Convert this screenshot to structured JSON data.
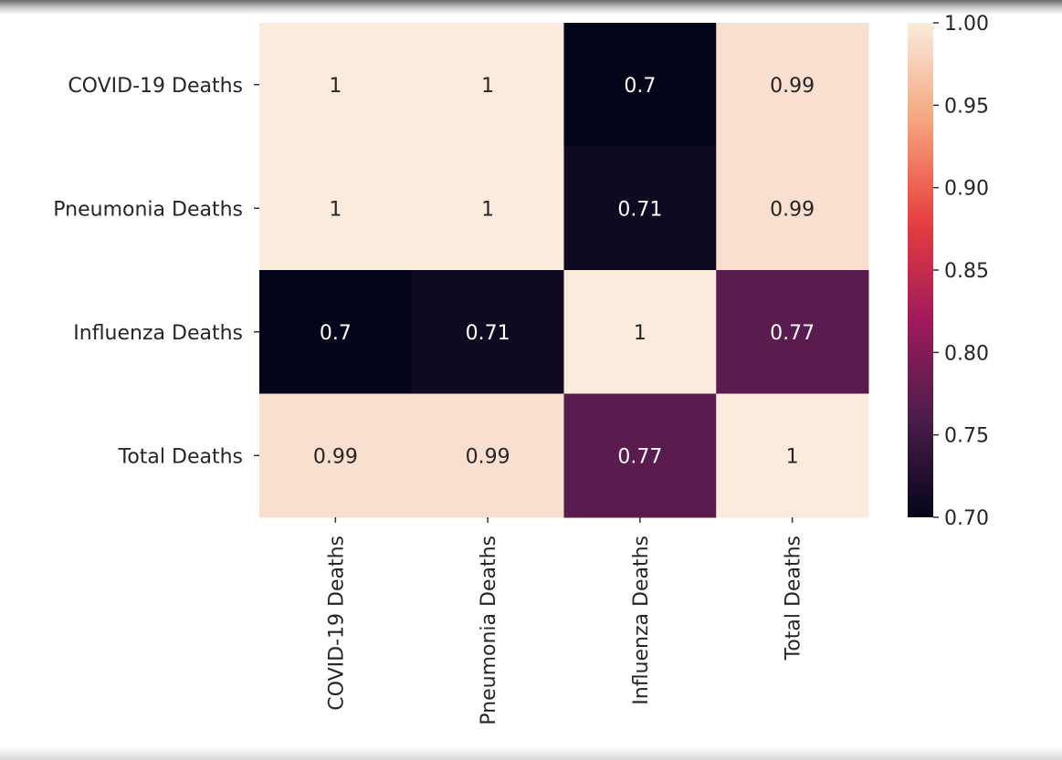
{
  "chart_data": {
    "type": "heatmap",
    "title": "",
    "xlabel": "",
    "ylabel": "",
    "rows": [
      "COVID-19 Deaths",
      "Pneumonia Deaths",
      "Influenza Deaths",
      "Total Deaths"
    ],
    "columns": [
      "COVID-19 Deaths",
      "Pneumonia Deaths",
      "Influenza Deaths",
      "Total Deaths"
    ],
    "values": [
      [
        1.0,
        1.0,
        0.7,
        0.99
      ],
      [
        1.0,
        1.0,
        0.71,
        0.99
      ],
      [
        0.7,
        0.71,
        1.0,
        0.77
      ],
      [
        0.99,
        0.99,
        0.77,
        1.0
      ]
    ],
    "annotations": [
      [
        "1",
        "1",
        "0.7",
        "0.99"
      ],
      [
        "1",
        "1",
        "0.71",
        "0.99"
      ],
      [
        "0.7",
        "0.71",
        "1",
        "0.77"
      ],
      [
        "0.99",
        "0.99",
        "0.77",
        "1"
      ]
    ],
    "colormap": "rocket",
    "colorbar": {
      "vmin": 0.7,
      "vmax": 1.0,
      "ticks": [
        "1.00",
        "0.95",
        "0.90",
        "0.85",
        "0.80",
        "0.75",
        "0.70"
      ],
      "tick_values": [
        1.0,
        0.95,
        0.9,
        0.85,
        0.8,
        0.75,
        0.7
      ]
    },
    "grid": false,
    "legend": "colorbar-right"
  }
}
